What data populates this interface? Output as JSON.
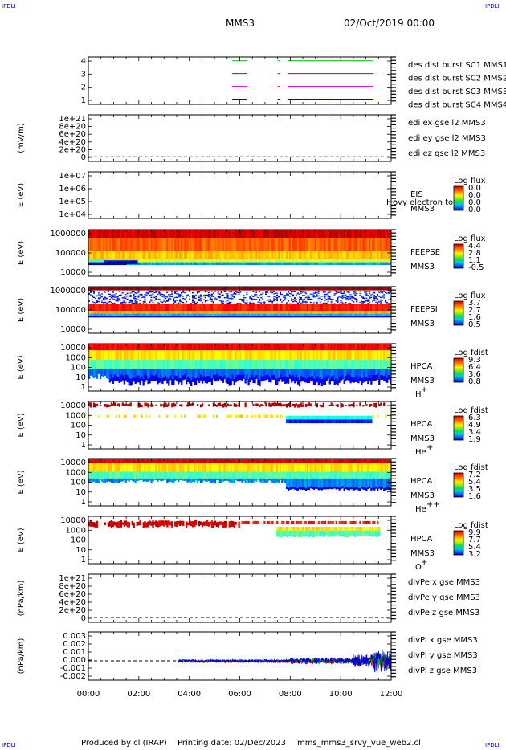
{
  "corner_label": "IPDLI",
  "header": {
    "spacecraft": "MMS3",
    "datetime": "02/Oct/2019 00:00"
  },
  "footer": {
    "produced_by": "Produced by cl (IRAP)",
    "printing_date": "Printing date: 02/Dec/2023",
    "filename": "mms_mms3_srvy_vue_web2.cl"
  },
  "colors": {
    "blue": "#0000cc",
    "magenta": "#cc00cc",
    "red": "#cc0000",
    "green": "#00bb00"
  },
  "chart_data": {
    "type": "spectrogram-stack",
    "x_ticks": [
      "00:00",
      "02:00",
      "04:00",
      "06:00",
      "08:00",
      "10:00",
      "12:00"
    ],
    "x_range_hours": [
      0,
      12
    ],
    "panels": [
      {
        "id": "burst",
        "type": "timeline",
        "yticks": [
          "4",
          "3",
          "2",
          "1"
        ],
        "legend": [
          {
            "text": "des dist burst SC1 MMS1",
            "color": "#0000cc"
          },
          {
            "text": "des dist burst SC2 MMS2",
            "color": "#cc00cc"
          },
          {
            "text": "des dist burst SC3 MMS3",
            "color": "#cc0000"
          },
          {
            "text": "des dist burst SC4 MMS4",
            "color": "#00bb00"
          }
        ],
        "segments_hours": [
          [
            5.7,
            6.3
          ],
          [
            7.5,
            7.6
          ],
          [
            7.9,
            11.3
          ]
        ]
      },
      {
        "id": "edi",
        "type": "line",
        "ylabel": "(mV/m)",
        "yticks": [
          "1e+21",
          "8e+20",
          "6e+20",
          "4e+20",
          "2e+20",
          "0"
        ],
        "legend": [
          {
            "text": "edi ex gse l2 MMS3",
            "color": "#cc0000"
          },
          {
            "text": "edi ey gse l2 MMS3",
            "color": "#00bb00"
          },
          {
            "text": "edi ez gse l2 MMS3",
            "color": "#0000cc"
          }
        ]
      },
      {
        "id": "eis",
        "type": "spectrogram",
        "ylabel": "E (eV)",
        "yticks": [
          "1e+07",
          "1e+06",
          "1e+05",
          "1e+04"
        ],
        "instrument": [
          "EIS",
          "MMS3"
        ],
        "overlay_text": "I_ovy electron to",
        "cbar_title": "Log flux",
        "cbar_ticks": [
          "0.0",
          "0.0",
          "0.0",
          "0.0"
        ]
      },
      {
        "id": "feepse",
        "type": "spectrogram",
        "ylabel": "E (eV)",
        "yticks": [
          "1000000",
          "100000",
          "10000"
        ],
        "instrument": [
          "FEEPSE",
          "MMS3"
        ],
        "cbar_title": "Log flux",
        "cbar_ticks": [
          "4.4",
          "2.8",
          "1.1",
          "-0.5"
        ]
      },
      {
        "id": "feepsi",
        "type": "spectrogram",
        "ylabel": "E (eV)",
        "yticks": [
          "1000000",
          "100000",
          "10000"
        ],
        "instrument": [
          "FEEPSI",
          "MMS3"
        ],
        "cbar_title": "Log flux",
        "cbar_ticks": [
          "3.7",
          "2.7",
          "1.6",
          "0.5"
        ]
      },
      {
        "id": "hpca_h",
        "type": "spectrogram",
        "ylabel": "E (eV)",
        "yticks": [
          "10000",
          "1000",
          "100",
          "10",
          "1"
        ],
        "instrument": [
          "HPCA",
          "MMS3"
        ],
        "species": "H",
        "charge": "+",
        "cbar_title": "Log fdist",
        "cbar_ticks": [
          "9.3",
          "6.4",
          "3.6",
          "0.8"
        ]
      },
      {
        "id": "hpca_he",
        "type": "spectrogram",
        "ylabel": "E (eV)",
        "yticks": [
          "10000",
          "1000",
          "100",
          "10",
          "1"
        ],
        "instrument": [
          "HPCA",
          "MMS3"
        ],
        "species": "He",
        "charge": "+",
        "cbar_title": "Log fdist",
        "cbar_ticks": [
          "6.3",
          "4.9",
          "3.4",
          "1.9"
        ]
      },
      {
        "id": "hpca_hepp",
        "type": "spectrogram",
        "ylabel": "E (eV)",
        "yticks": [
          "10000",
          "1000",
          "100",
          "10",
          "1"
        ],
        "instrument": [
          "HPCA",
          "MMS3"
        ],
        "species": "He",
        "charge": "++",
        "cbar_title": "Log fdist",
        "cbar_ticks": [
          "7.2",
          "5.4",
          "3.5",
          "1.6"
        ]
      },
      {
        "id": "hpca_o",
        "type": "spectrogram",
        "ylabel": "E (eV)",
        "yticks": [
          "10000",
          "1000",
          "100",
          "10",
          "1"
        ],
        "instrument": [
          "HPCA",
          "MMS3"
        ],
        "species": "O",
        "charge": "+",
        "cbar_title": "Log fdist",
        "cbar_ticks": [
          "9.9",
          "7.7",
          "5.4",
          "3.2"
        ]
      },
      {
        "id": "divpe",
        "type": "line",
        "ylabel": "(nPa/km)",
        "yticks": [
          "1e+21",
          "8e+20",
          "6e+20",
          "4e+20",
          "2e+20",
          "0"
        ],
        "legend": [
          {
            "text": "divPe x gse MMS3",
            "color": "#cc0000"
          },
          {
            "text": "divPe y gse MMS3",
            "color": "#00bb00"
          },
          {
            "text": "divPe z gse MMS3",
            "color": "#0000cc"
          }
        ]
      },
      {
        "id": "divpi",
        "type": "line",
        "ylabel": "(nPa/km)",
        "yticks": [
          "0.003",
          "0.002",
          "0.001",
          "0.000",
          "-0.001",
          "-0.002"
        ],
        "legend": [
          {
            "text": "divPi x gse MMS3",
            "color": "#cc0000"
          },
          {
            "text": "divPi y gse MMS3",
            "color": "#00bb00"
          },
          {
            "text": "divPi z gse MMS3",
            "color": "#0000cc"
          }
        ]
      }
    ]
  }
}
